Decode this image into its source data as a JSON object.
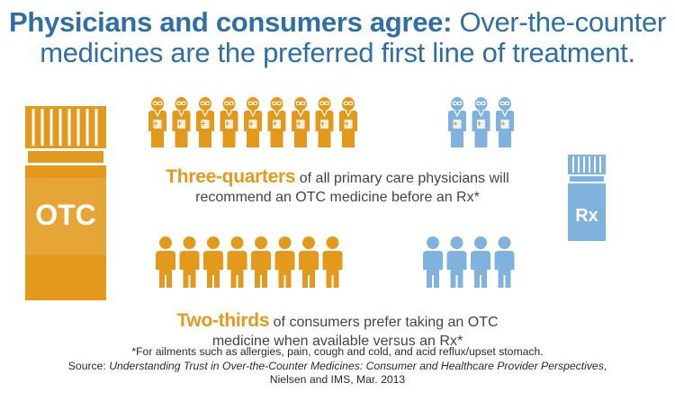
{
  "title": {
    "bold": "Physicians and consumers agree:",
    "rest_line1": "Over-the-counter",
    "rest_line2": "medicines are the preferred first line of treatment."
  },
  "colors": {
    "otc": "#e39a1c",
    "rx": "#7fb3dd",
    "title": "#2f6fa3",
    "text": "#444444"
  },
  "labels": {
    "otc_bottle": "OTC",
    "rx_bottle": "Rx"
  },
  "icons": {
    "doctor": "doctor-icon",
    "person": "person-icon",
    "bottle": "pill-bottle-icon"
  },
  "chart_data": [
    {
      "type": "pictogram",
      "categories": [
        "OTC",
        "Rx"
      ],
      "values": [
        0.75,
        0.25
      ],
      "counts": [
        9,
        3
      ],
      "highlight": "Three-quarters",
      "line1_rest": "of all primary care physicians will",
      "line2": "recommend an OTC medicine before an Rx*"
    },
    {
      "type": "pictogram",
      "categories": [
        "OTC",
        "Rx"
      ],
      "values": [
        0.6667,
        0.3333
      ],
      "counts": [
        8,
        4
      ],
      "highlight": "Two-thirds",
      "line1_rest": "of consumers prefer taking an OTC",
      "line2": "medicine when available versus an Rx*"
    }
  ],
  "footnote": {
    "line1": "*For ailments such as allergies, pain, cough and cold, and acid reflux/upset stomach.",
    "source_prefix": "Source:",
    "source_title": "Understanding Trust in Over-the-Counter Medicines: Consumer and Healthcare Provider Perspectives",
    "source_suffix": ",",
    "line3": "Nielsen and IMS, Mar. 2013"
  }
}
